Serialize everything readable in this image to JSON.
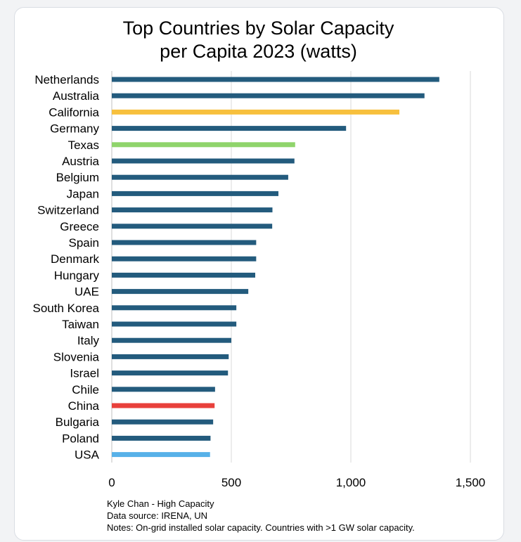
{
  "chart_data": {
    "type": "bar",
    "orientation": "horizontal",
    "title_lines": [
      "Top Countries by Solar Capacity",
      "per Capita 2023 (watts)"
    ],
    "categories": [
      "Netherlands",
      "Australia",
      "California",
      "Germany",
      "Texas",
      "Austria",
      "Belgium",
      "Japan",
      "Switzerland",
      "Greece",
      "Spain",
      "Denmark",
      "Hungary",
      "UAE",
      "South Korea",
      "Taiwan",
      "Italy",
      "Slovenia",
      "Israel",
      "Chile",
      "China",
      "Bulgaria",
      "Poland",
      "USA"
    ],
    "values": [
      1370,
      1308,
      1203,
      980,
      767,
      764,
      738,
      697,
      672,
      671,
      604,
      604,
      600,
      571,
      521,
      521,
      500,
      489,
      486,
      432,
      430,
      424,
      413,
      411
    ],
    "colors": [
      "#235b7d",
      "#235b7d",
      "#f7c03d",
      "#235b7d",
      "#8fd46b",
      "#235b7d",
      "#235b7d",
      "#235b7d",
      "#235b7d",
      "#235b7d",
      "#235b7d",
      "#235b7d",
      "#235b7d",
      "#235b7d",
      "#235b7d",
      "#235b7d",
      "#235b7d",
      "#235b7d",
      "#235b7d",
      "#235b7d",
      "#e8403b",
      "#235b7d",
      "#235b7d",
      "#57b1e8"
    ],
    "xlim": [
      0,
      1500
    ],
    "xticks": [
      0,
      500,
      1000,
      1500
    ],
    "xtick_labels": [
      "0",
      "500",
      "1,000",
      "1,500"
    ],
    "grid": "vertical",
    "legend": "none"
  },
  "notes": {
    "line1": "Kyle Chan - High Capacity",
    "line2": "Data source: IRENA, UN",
    "line3": "Notes: On-grid installed solar capacity. Countries with >1 GW solar capacity."
  }
}
